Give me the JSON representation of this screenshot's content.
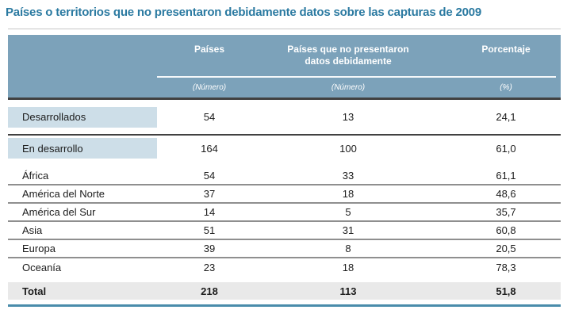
{
  "title": "Países o territorios que no presentaron debidamente datos sobre las capturas de 2009",
  "header": {
    "col_paises": "Países",
    "col_no_presentaron_line1": "Países que no presentaron",
    "col_no_presentaron_line2": "datos debidamente",
    "col_porcentaje": "Porcentaje",
    "sub_paises": "(Número)",
    "sub_no_presentaron": "(Número)",
    "sub_porcentaje": "(%)"
  },
  "rows": [
    {
      "label": "Desarrollados",
      "paises": "54",
      "no_presentaron": "13",
      "porcentaje": "24,1"
    },
    {
      "label": "En desarrollo",
      "paises": "164",
      "no_presentaron": "100",
      "porcentaje": "61,0"
    },
    {
      "label": "África",
      "paises": "54",
      "no_presentaron": "33",
      "porcentaje": "61,1"
    },
    {
      "label": "América del Norte",
      "paises": "37",
      "no_presentaron": "18",
      "porcentaje": "48,6"
    },
    {
      "label": "América del Sur",
      "paises": "14",
      "no_presentaron": "5",
      "porcentaje": "35,7"
    },
    {
      "label": "Asia",
      "paises": "51",
      "no_presentaron": "31",
      "porcentaje": "60,8"
    },
    {
      "label": "Europa",
      "paises": "39",
      "no_presentaron": "8",
      "porcentaje": "20,5"
    },
    {
      "label": "Oceanía",
      "paises": "23",
      "no_presentaron": "18",
      "porcentaje": "78,3"
    },
    {
      "label": "Total",
      "paises": "218",
      "no_presentaron": "113",
      "porcentaje": "51,8"
    }
  ],
  "colors": {
    "title_text": "#2b7aa1",
    "header_bg": "#7ca2ba",
    "header_text": "#ffffff",
    "group_label_bg": "#cddee8",
    "total_row_bg": "#e9e9e9",
    "dark_rule": "#414141",
    "light_rule": "#8f8f8f",
    "bottom_rule": "#4a8cab",
    "body_text": "#1c1c1c"
  }
}
